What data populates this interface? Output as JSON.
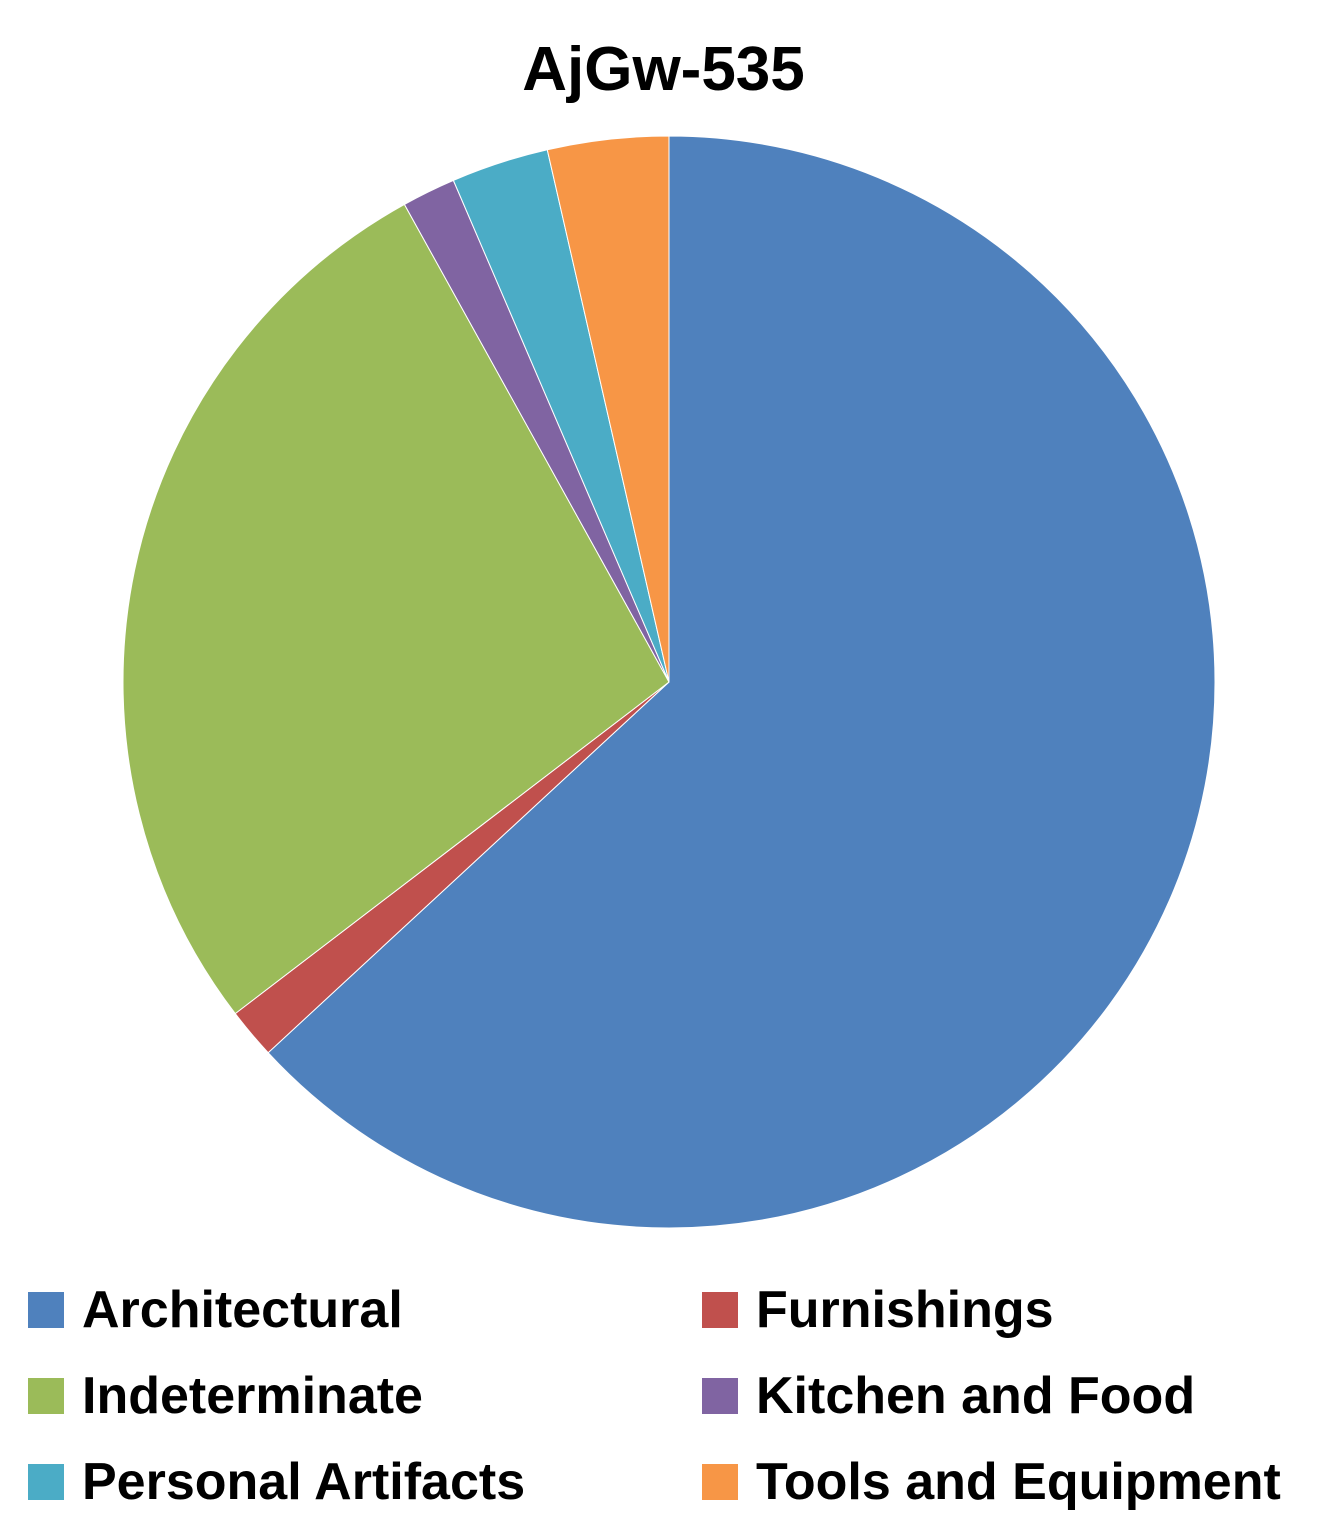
{
  "chart_data": {
    "type": "pie",
    "title": "AjGw-535",
    "legend_position": "bottom",
    "slices": [
      {
        "label": "Architectural",
        "value": 63.5,
        "color": "#4F81BD"
      },
      {
        "label": "Furnishings",
        "value": 1.5,
        "color": "#C0504D"
      },
      {
        "label": "Indeterminate",
        "value": 27.5,
        "color": "#9BBB59"
      },
      {
        "label": "Kitchen and Food",
        "value": 1.6,
        "color": "#8064A2"
      },
      {
        "label": "Personal Artifacts",
        "value": 2.9,
        "color": "#4BACC6"
      },
      {
        "label": "Tools and Equipment",
        "value": 3.6,
        "color": "#F79646"
      }
    ]
  }
}
